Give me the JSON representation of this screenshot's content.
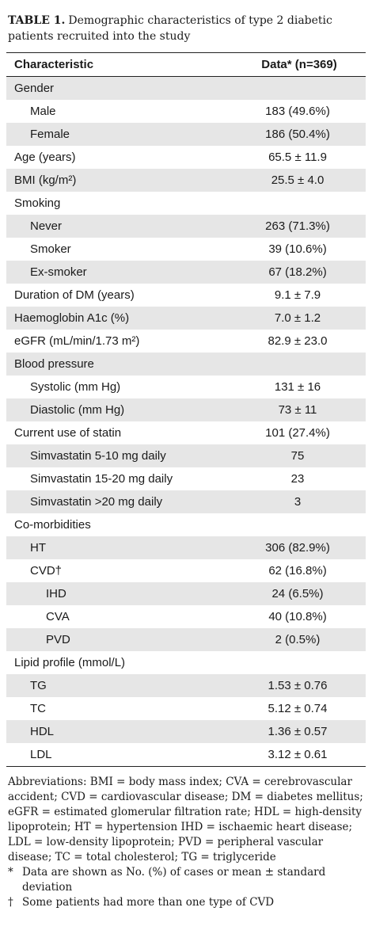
{
  "table": {
    "title_label": "TABLE 1.",
    "title": "Demographic characteristics of type 2 diabetic patients recruited into the study",
    "header": [
      "Characteristic",
      "Data* (n=369)"
    ],
    "rows": [
      {
        "label": "Gender",
        "children": [
          {
            "label": "Male",
            "value": "183 (49.6%)"
          },
          {
            "label": "Female",
            "value": "186 (50.4%)"
          }
        ]
      },
      {
        "label": "Age (years)",
        "value": "65.5 ± 11.9"
      },
      {
        "label": "BMI (kg/m²)",
        "value": "25.5 ± 4.0"
      },
      {
        "label": "Smoking",
        "children": [
          {
            "label": "Never",
            "value": "263 (71.3%)"
          },
          {
            "label": "Smoker",
            "value": "39 (10.6%)"
          },
          {
            "label": "Ex-smoker",
            "value": "67 (18.2%)"
          }
        ]
      },
      {
        "label": "Duration of DM (years)",
        "value": "9.1 ± 7.9"
      },
      {
        "label": "Haemoglobin A1c (%)",
        "value": "7.0 ± 1.2"
      },
      {
        "label": "eGFR (mL/min/1.73 m²)",
        "value": "82.9 ± 23.0"
      },
      {
        "label": "Blood pressure",
        "children": [
          {
            "label": "Systolic (mm Hg)",
            "value": "131 ± 16"
          },
          {
            "label": "Diastolic (mm Hg)",
            "value": "73 ± 11"
          }
        ]
      },
      {
        "label": "Current use of statin",
        "value": "101 (27.4%)",
        "children": [
          {
            "label": "Simvastatin 5-10 mg daily",
            "value": "75"
          },
          {
            "label": "Simvastatin 15-20 mg daily",
            "value": "23"
          },
          {
            "label": "Simvastatin >20 mg daily",
            "value": "3"
          }
        ]
      },
      {
        "label": "Co-morbidities",
        "children": [
          {
            "label": "HT",
            "value": "306 (82.9%)"
          },
          {
            "label": "CVD†",
            "value": "62 (16.8%)",
            "children": [
              {
                "label": "IHD",
                "value": "24 (6.5%)"
              },
              {
                "label": "CVA",
                "value": "40 (10.8%)"
              },
              {
                "label": "PVD",
                "value": "2 (0.5%)"
              }
            ]
          }
        ]
      },
      {
        "label": "Lipid profile (mmol/L)",
        "children": [
          {
            "label": "TG",
            "value": "1.53 ± 0.76"
          },
          {
            "label": "TC",
            "value": "5.12 ± 0.74"
          },
          {
            "label": "HDL",
            "value": "1.36 ± 0.57"
          },
          {
            "label": "LDL",
            "value": "3.12 ± 0.61"
          }
        ]
      }
    ],
    "abbreviations": "Abbreviations: BMI = body mass index; CVA = cerebrovascular accident; CVD = cardiovascular disease; DM = diabetes mellitus; eGFR = estimated glomerular filtration rate; HDL = high-density lipoprotein; HT = hypertension IHD = ischaemic heart disease; LDL = low-density lipoprotein; PVD = peripheral vascular disease; TC = total cholesterol; TG = triglyceride",
    "notes": [
      {
        "symbol": "*",
        "text": "Data are shown as No. (%) of cases or mean ± standard deviation"
      },
      {
        "symbol": "†",
        "text": "Some patients had more than one type of CVD"
      }
    ]
  }
}
